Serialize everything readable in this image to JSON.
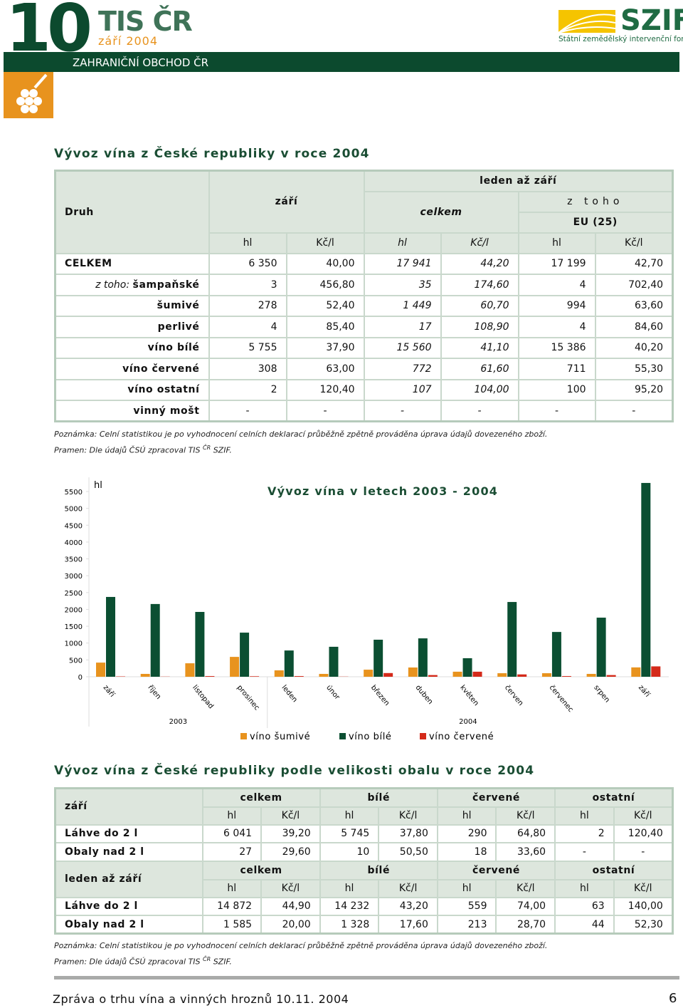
{
  "header": {
    "number": "10",
    "brand": "TIS ČR",
    "date": "září 2004",
    "section": "ZAHRANIČNÍ OBCHOD ČR",
    "logo": "SZIF",
    "logo_sub": "Státní zemědělský intervenční fond"
  },
  "table1": {
    "title": "Vývoz vína z České republiky v roce 2004",
    "druh": "Druh",
    "period1": "září",
    "period2": "leden až září",
    "celkem": "celkem",
    "z_toho": "z toho",
    "eu": "EU (25)",
    "units": [
      "hl",
      "Kč/l",
      "hl",
      "Kč/l",
      "hl",
      "Kč/l"
    ],
    "rows": [
      {
        "label": "CELKEM",
        "values": [
          "6 350",
          "40,00",
          "17 941",
          "44,20",
          "17 199",
          "42,70"
        ]
      },
      {
        "prefix": "z toho:",
        "label": "šampaňské",
        "values": [
          "3",
          "456,80",
          "35",
          "174,60",
          "4",
          "702,40"
        ]
      },
      {
        "label": "šumivé",
        "values": [
          "278",
          "52,40",
          "1 449",
          "60,70",
          "994",
          "63,60"
        ]
      },
      {
        "label": "perlivé",
        "values": [
          "4",
          "85,40",
          "17",
          "108,90",
          "4",
          "84,60"
        ]
      },
      {
        "label": "víno bílé",
        "values": [
          "5 755",
          "37,90",
          "15 560",
          "41,10",
          "15 386",
          "40,20"
        ]
      },
      {
        "label": "víno červené",
        "values": [
          "308",
          "63,00",
          "772",
          "61,60",
          "711",
          "55,30"
        ]
      },
      {
        "label": "víno ostatní",
        "values": [
          "2",
          "120,40",
          "107",
          "104,00",
          "100",
          "95,20"
        ]
      },
      {
        "label": "vinný mošt",
        "values": [
          "-",
          "-",
          "-",
          "-",
          "-",
          "-"
        ]
      }
    ]
  },
  "notes": {
    "note": "Poznámka: Celní statistikou je po vyhodnocení celních deklarací průběžně zpětně prováděna úprava údajů dovezeného zboží.",
    "source_pre": "Pramen: Dle údajů ČSÚ zpracoval TIS",
    "source_sup": "ČR",
    "source_post": "SZIF."
  },
  "chart_data": {
    "type": "bar",
    "title": "Vývoz vína v letech 2003 - 2004",
    "y_label": "hl",
    "categories": [
      "září",
      "říjen",
      "listopad",
      "prosinec",
      "leden",
      "únor",
      "březen",
      "duben",
      "květen",
      "červen",
      "červenec",
      "srpen",
      "září"
    ],
    "x_groups": [
      "2003",
      "2004"
    ],
    "series": [
      {
        "name": "víno šumivé",
        "color": "#e8931e",
        "values": [
          420,
          85,
          400,
          590,
          190,
          85,
          210,
          275,
          150,
          105,
          105,
          85,
          278
        ]
      },
      {
        "name": "víno bílé",
        "color": "#0b4f32",
        "values": [
          2370,
          2160,
          1925,
          1310,
          780,
          890,
          1100,
          1140,
          550,
          2220,
          1330,
          1755,
          5755
        ]
      },
      {
        "name": "víno červené",
        "color": "#d42a1a",
        "values": [
          10,
          5,
          20,
          15,
          20,
          5,
          110,
          50,
          150,
          70,
          20,
          50,
          308
        ]
      }
    ],
    "ylim": [
      0,
      5500
    ],
    "yticks": [
      0,
      500,
      1000,
      1500,
      2000,
      2500,
      3000,
      3500,
      4000,
      4500,
      5000,
      5500
    ],
    "legend": "bottom"
  },
  "table2": {
    "title": "Vývoz vína z České republiky podle velikosti obalu v roce 2004",
    "sections": [
      {
        "period": "září",
        "groups": [
          "celkem",
          "bílé",
          "červené",
          "ostatní"
        ],
        "units": [
          "hl",
          "Kč/l",
          "hl",
          "Kč/l",
          "hl",
          "Kč/l",
          "hl",
          "Kč/l"
        ],
        "rows": [
          {
            "label": "Láhve do 2 l",
            "values": [
              "6 041",
              "39,20",
              "5 745",
              "37,80",
              "290",
              "64,80",
              "2",
              "120,40"
            ]
          },
          {
            "label": "Obaly nad 2 l",
            "values": [
              "27",
              "29,60",
              "10",
              "50,50",
              "18",
              "33,60",
              "-",
              "-"
            ]
          }
        ]
      },
      {
        "period": "leden až září",
        "groups": [
          "celkem",
          "bílé",
          "červené",
          "ostatní"
        ],
        "units": [
          "hl",
          "Kč/l",
          "hl",
          "Kč/l",
          "hl",
          "Kč/l",
          "hl",
          "Kč/l"
        ],
        "rows": [
          {
            "label": "Láhve do 2 l",
            "values": [
              "14 872",
              "44,90",
              "14 232",
              "43,20",
              "559",
              "74,00",
              "63",
              "140,00"
            ]
          },
          {
            "label": "Obaly nad 2 l",
            "values": [
              "1 585",
              "20,00",
              "1 328",
              "17,60",
              "213",
              "28,70",
              "44",
              "52,30"
            ]
          }
        ]
      }
    ]
  },
  "footer": {
    "text": "Zpráva o trhu vína a vinných hroznů 10.11. 2004",
    "page": "6"
  }
}
